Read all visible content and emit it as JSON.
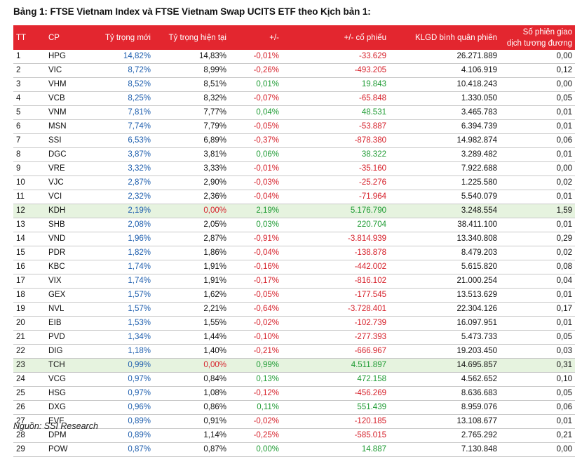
{
  "title": "Bảng 1: FTSE Vietnam Index và FTSE Vietnam Swap UCITS ETF theo Kịch bản 1:",
  "headers": {
    "tt": "TT",
    "cp": "CP",
    "new_weight": "Tỷ trọng mới",
    "current_weight": "Tỷ trọng hiện tại",
    "change": "+/-",
    "share_change": "+/- cổ phiếu",
    "avg_volume": "KLGD bình quân phiên",
    "sessions_line1": "Số phiên giao",
    "sessions_line2": "dịch tương đương"
  },
  "rows": [
    {
      "tt": "1",
      "cp": "HPG",
      "new": "14,82%",
      "current": "14,83%",
      "change": "-0,01%",
      "shares": "-33.629",
      "volume": "26.271.889",
      "sessions": "0,00",
      "highlight": false
    },
    {
      "tt": "2",
      "cp": "VIC",
      "new": "8,72%",
      "current": "8,99%",
      "change": "-0,26%",
      "shares": "-493.205",
      "volume": "4.106.919",
      "sessions": "0,12",
      "highlight": false
    },
    {
      "tt": "3",
      "cp": "VHM",
      "new": "8,52%",
      "current": "8,51%",
      "change": "0,01%",
      "shares": "19.843",
      "volume": "10.418.243",
      "sessions": "0,00",
      "highlight": false
    },
    {
      "tt": "4",
      "cp": "VCB",
      "new": "8,25%",
      "current": "8,32%",
      "change": "-0,07%",
      "shares": "-65.848",
      "volume": "1.330.050",
      "sessions": "0,05",
      "highlight": false
    },
    {
      "tt": "5",
      "cp": "VNM",
      "new": "7,81%",
      "current": "7,77%",
      "change": "0,04%",
      "shares": "48.531",
      "volume": "3.465.783",
      "sessions": "0,01",
      "highlight": false
    },
    {
      "tt": "6",
      "cp": "MSN",
      "new": "7,74%",
      "current": "7,79%",
      "change": "-0,05%",
      "shares": "-53.887",
      "volume": "6.394.739",
      "sessions": "0,01",
      "highlight": false
    },
    {
      "tt": "7",
      "cp": "SSI",
      "new": "6,53%",
      "current": "6,89%",
      "change": "-0,37%",
      "shares": "-878.380",
      "volume": "14.982.874",
      "sessions": "0,06",
      "highlight": false
    },
    {
      "tt": "8",
      "cp": "DGC",
      "new": "3,87%",
      "current": "3,81%",
      "change": "0,06%",
      "shares": "38.322",
      "volume": "3.289.482",
      "sessions": "0,01",
      "highlight": false
    },
    {
      "tt": "9",
      "cp": "VRE",
      "new": "3,32%",
      "current": "3,33%",
      "change": "-0,01%",
      "shares": "-35.160",
      "volume": "7.922.688",
      "sessions": "0,00",
      "highlight": false
    },
    {
      "tt": "10",
      "cp": "VJC",
      "new": "2,87%",
      "current": "2,90%",
      "change": "-0,03%",
      "shares": "-25.276",
      "volume": "1.225.580",
      "sessions": "0,02",
      "highlight": false
    },
    {
      "tt": "11",
      "cp": "VCI",
      "new": "2,32%",
      "current": "2,36%",
      "change": "-0,04%",
      "shares": "-71.964",
      "volume": "5.540.079",
      "sessions": "0,01",
      "highlight": false
    },
    {
      "tt": "12",
      "cp": "KDH",
      "new": "2,19%",
      "current": "0,00%",
      "change": "2,19%",
      "shares": "5.176.790",
      "volume": "3.248.554",
      "sessions": "1,59",
      "highlight": true
    },
    {
      "tt": "13",
      "cp": "SHB",
      "new": "2,08%",
      "current": "2,05%",
      "change": "0,03%",
      "shares": "220.704",
      "volume": "38.411.100",
      "sessions": "0,01",
      "highlight": false
    },
    {
      "tt": "14",
      "cp": "VND",
      "new": "1,96%",
      "current": "2,87%",
      "change": "-0,91%",
      "shares": "-3.814.939",
      "volume": "13.340.808",
      "sessions": "0,29",
      "highlight": false
    },
    {
      "tt": "15",
      "cp": "PDR",
      "new": "1,82%",
      "current": "1,86%",
      "change": "-0,04%",
      "shares": "-138.878",
      "volume": "8.479.203",
      "sessions": "0,02",
      "highlight": false
    },
    {
      "tt": "16",
      "cp": "KBC",
      "new": "1,74%",
      "current": "1,91%",
      "change": "-0,16%",
      "shares": "-442.002",
      "volume": "5.615.820",
      "sessions": "0,08",
      "highlight": false
    },
    {
      "tt": "17",
      "cp": "VIX",
      "new": "1,74%",
      "current": "1,91%",
      "change": "-0,17%",
      "shares": "-816.102",
      "volume": "21.000.254",
      "sessions": "0,04",
      "highlight": false
    },
    {
      "tt": "18",
      "cp": "GEX",
      "new": "1,57%",
      "current": "1,62%",
      "change": "-0,05%",
      "shares": "-177.545",
      "volume": "13.513.629",
      "sessions": "0,01",
      "highlight": false
    },
    {
      "tt": "19",
      "cp": "NVL",
      "new": "1,57%",
      "current": "2,21%",
      "change": "-0,64%",
      "shares": "-3.728.401",
      "volume": "22.304.126",
      "sessions": "0,17",
      "highlight": false
    },
    {
      "tt": "20",
      "cp": "EIB",
      "new": "1,53%",
      "current": "1,55%",
      "change": "-0,02%",
      "shares": "-102.739",
      "volume": "16.097.951",
      "sessions": "0,01",
      "highlight": false
    },
    {
      "tt": "21",
      "cp": "PVD",
      "new": "1,34%",
      "current": "1,44%",
      "change": "-0,10%",
      "shares": "-277.393",
      "volume": "5.473.733",
      "sessions": "0,05",
      "highlight": false
    },
    {
      "tt": "22",
      "cp": "DIG",
      "new": "1,18%",
      "current": "1,40%",
      "change": "-0,21%",
      "shares": "-666.967",
      "volume": "19.203.450",
      "sessions": "0,03",
      "highlight": false
    },
    {
      "tt": "23",
      "cp": "TCH",
      "new": "0,99%",
      "current": "0,00%",
      "change": "0,99%",
      "shares": "4.511.897",
      "volume": "14.695.857",
      "sessions": "0,31",
      "highlight": true
    },
    {
      "tt": "24",
      "cp": "VCG",
      "new": "0,97%",
      "current": "0,84%",
      "change": "0,13%",
      "shares": "472.158",
      "volume": "4.562.652",
      "sessions": "0,10",
      "highlight": false
    },
    {
      "tt": "25",
      "cp": "HSG",
      "new": "0,97%",
      "current": "1,08%",
      "change": "-0,12%",
      "shares": "-456.269",
      "volume": "8.636.683",
      "sessions": "0,05",
      "highlight": false
    },
    {
      "tt": "26",
      "cp": "DXG",
      "new": "0,96%",
      "current": "0,86%",
      "change": "0,11%",
      "shares": "551.439",
      "volume": "8.959.076",
      "sessions": "0,06",
      "highlight": false
    },
    {
      "tt": "27",
      "cp": "EVF",
      "new": "0,89%",
      "current": "0,91%",
      "change": "-0,02%",
      "shares": "-120.185",
      "volume": "13.108.677",
      "sessions": "0,01",
      "highlight": false
    },
    {
      "tt": "28",
      "cp": "DPM",
      "new": "0,89%",
      "current": "1,14%",
      "change": "-0,25%",
      "shares": "-585.015",
      "volume": "2.765.292",
      "sessions": "0,21",
      "highlight": false
    },
    {
      "tt": "29",
      "cp": "POW",
      "new": "0,87%",
      "current": "0,87%",
      "change": "0,00%",
      "shares": "14.887",
      "volume": "7.130.848",
      "sessions": "0,00",
      "highlight": false
    }
  ],
  "source": "Nguồn: SSI Research",
  "colors": {
    "header_bg": "#e3262f",
    "positive": "#1e9b33",
    "negative": "#d6202a",
    "new_weight": "#1f5fae",
    "highlight_row": "#e6f3df"
  }
}
